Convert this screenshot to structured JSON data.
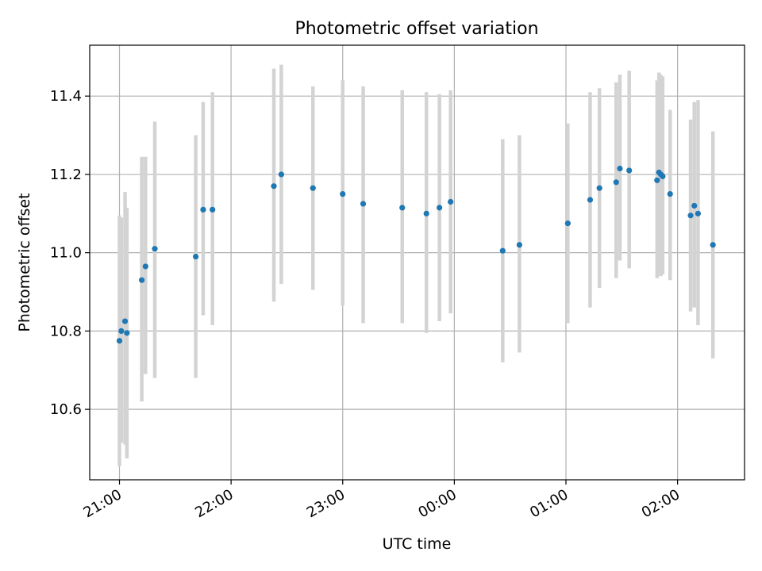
{
  "chart_data": {
    "type": "scatter",
    "title": "Photometric offset variation",
    "xlabel": "UTC time",
    "ylabel": "Photometric offset",
    "grid": true,
    "legend": false,
    "x_ticks": [
      "21:00",
      "22:00",
      "23:00",
      "00:00",
      "01:00",
      "02:00"
    ],
    "y_ticks": [
      "10.6",
      "10.8",
      "11.0",
      "11.2",
      "11.4"
    ],
    "xlim": [
      "20:44",
      "02:36"
    ],
    "ylim": [
      10.42,
      11.53
    ],
    "colors": {
      "point": "#1f77b4",
      "errorbar": "#d3d3d3",
      "grid": "#b0b0b0"
    },
    "points": [
      {
        "x": "21:00",
        "y": 10.775,
        "lo": 10.455,
        "hi": 11.095
      },
      {
        "x": "21:01",
        "y": 10.8,
        "lo": 10.515,
        "hi": 11.09
      },
      {
        "x": "21:03",
        "y": 10.825,
        "lo": 10.51,
        "hi": 11.155
      },
      {
        "x": "21:04",
        "y": 10.795,
        "lo": 10.475,
        "hi": 11.115
      },
      {
        "x": "21:12",
        "y": 10.93,
        "lo": 10.62,
        "hi": 11.245
      },
      {
        "x": "21:14",
        "y": 10.965,
        "lo": 10.69,
        "hi": 11.245
      },
      {
        "x": "21:19",
        "y": 11.01,
        "lo": 10.68,
        "hi": 11.335
      },
      {
        "x": "21:41",
        "y": 10.99,
        "lo": 10.68,
        "hi": 11.3
      },
      {
        "x": "21:45",
        "y": 11.11,
        "lo": 10.84,
        "hi": 11.385
      },
      {
        "x": "21:50",
        "y": 11.11,
        "lo": 10.815,
        "hi": 11.41
      },
      {
        "x": "22:23",
        "y": 11.17,
        "lo": 10.875,
        "hi": 11.47
      },
      {
        "x": "22:27",
        "y": 11.2,
        "lo": 10.92,
        "hi": 11.48
      },
      {
        "x": "22:44",
        "y": 11.165,
        "lo": 10.905,
        "hi": 11.425
      },
      {
        "x": "23:00",
        "y": 11.15,
        "lo": 10.865,
        "hi": 11.44
      },
      {
        "x": "23:11",
        "y": 11.125,
        "lo": 10.82,
        "hi": 11.425
      },
      {
        "x": "23:32",
        "y": 11.115,
        "lo": 10.82,
        "hi": 11.415
      },
      {
        "x": "23:45",
        "y": 11.1,
        "lo": 10.795,
        "hi": 11.41
      },
      {
        "x": "23:52",
        "y": 11.115,
        "lo": 10.825,
        "hi": 11.405
      },
      {
        "x": "23:58",
        "y": 11.13,
        "lo": 10.845,
        "hi": 11.415
      },
      {
        "x": "00:26",
        "y": 11.005,
        "lo": 10.72,
        "hi": 11.29
      },
      {
        "x": "00:35",
        "y": 11.02,
        "lo": 10.745,
        "hi": 11.3
      },
      {
        "x": "01:01",
        "y": 11.075,
        "lo": 10.82,
        "hi": 11.33
      },
      {
        "x": "01:13",
        "y": 11.135,
        "lo": 10.86,
        "hi": 11.41
      },
      {
        "x": "01:18",
        "y": 11.165,
        "lo": 10.91,
        "hi": 11.42
      },
      {
        "x": "01:27",
        "y": 11.18,
        "lo": 10.935,
        "hi": 11.435
      },
      {
        "x": "01:29",
        "y": 11.215,
        "lo": 10.98,
        "hi": 11.455
      },
      {
        "x": "01:34",
        "y": 11.21,
        "lo": 10.96,
        "hi": 11.465
      },
      {
        "x": "01:49",
        "y": 11.185,
        "lo": 10.935,
        "hi": 11.44
      },
      {
        "x": "01:50",
        "y": 11.205,
        "lo": 10.945,
        "hi": 11.46
      },
      {
        "x": "01:51",
        "y": 11.2,
        "lo": 10.94,
        "hi": 11.455
      },
      {
        "x": "01:52",
        "y": 11.195,
        "lo": 10.945,
        "hi": 11.45
      },
      {
        "x": "01:56",
        "y": 11.15,
        "lo": 10.93,
        "hi": 11.365
      },
      {
        "x": "02:07",
        "y": 11.095,
        "lo": 10.85,
        "hi": 11.34
      },
      {
        "x": "02:09",
        "y": 11.12,
        "lo": 10.86,
        "hi": 11.385
      },
      {
        "x": "02:11",
        "y": 11.1,
        "lo": 10.815,
        "hi": 11.39
      },
      {
        "x": "02:19",
        "y": 11.02,
        "lo": 10.73,
        "hi": 11.31
      }
    ]
  }
}
